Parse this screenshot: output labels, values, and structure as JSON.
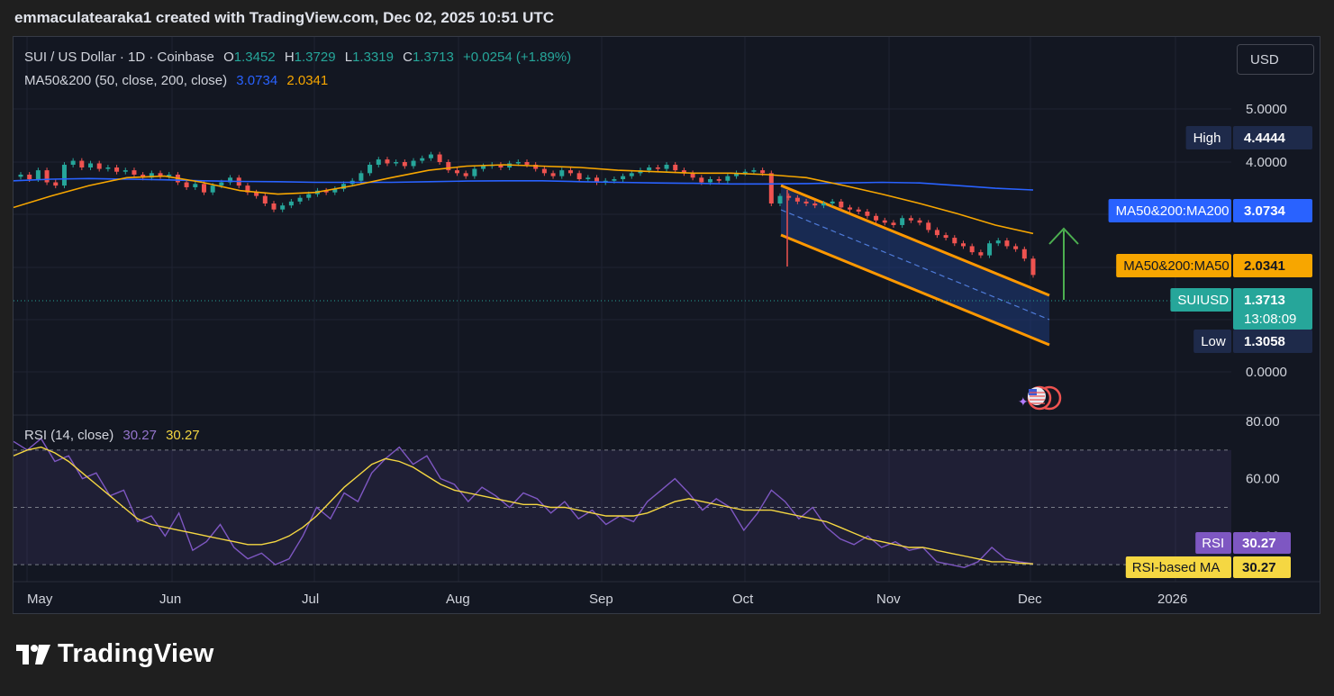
{
  "caption": "emmaculatearaka1 created with TradingView.com, Dec 02, 2025 10:51 UTC",
  "legend": {
    "symbol": "SUI / US Dollar · 1D · Coinbase",
    "o_label": "O",
    "o": "1.3452",
    "h_label": "H",
    "h": "1.3729",
    "l_label": "L",
    "l": "1.3319",
    "c_label": "C",
    "c": "1.3713",
    "change": "+0.0254 (+1.89%)",
    "ma_label": "MA50&200 (50, close, 200, close)",
    "ma200_value": "3.0734",
    "ma50_value": "2.0341",
    "rsi_label": "RSI (14, close)",
    "rsi_value": "30.27",
    "rsi_ma_value": "30.27"
  },
  "currency_button": "USD",
  "brand": "TradingView",
  "colors": {
    "up": "#26a69a",
    "down": "#ef5350",
    "ma200": "#2962ff",
    "ma50": "#f7a600",
    "rsi": "#7e57c2",
    "rsi_ma": "#f5d742",
    "channel": "#ff9800",
    "arrow": "#4caf50"
  },
  "chart_data": [
    {
      "type": "candlestick",
      "title": "",
      "x_tick_labels": [
        "May",
        "Jun",
        "Jul",
        "Aug",
        "Sep",
        "Oct",
        "Nov",
        "Dec",
        "2026"
      ],
      "y_tick_labels": [
        "5.0000",
        "4.0000",
        "0.0000"
      ],
      "price_labels": [
        {
          "name": "High",
          "value": "4.4444",
          "color": "#1e2a4a"
        },
        {
          "name": "MA50&200:MA200",
          "value": "3.0734",
          "color": "#2962ff"
        },
        {
          "name": "MA50&200:MA50",
          "value": "2.0341",
          "color": "#f7a600"
        },
        {
          "name": "SUIUSD",
          "value": "1.3713",
          "sub": "13:08:09",
          "color": "#26a69a"
        },
        {
          "name": "Low",
          "value": "1.3058",
          "color": "#1e2a4a"
        }
      ],
      "close_path": [
        3.55,
        3.4,
        3.7,
        3.3,
        3.2,
        3.9,
        4.05,
        3.8,
        3.95,
        3.75,
        3.8,
        3.65,
        3.7,
        3.55,
        3.45,
        3.6,
        3.5,
        3.55,
        3.3,
        3.15,
        3.25,
        3.0,
        3.2,
        3.3,
        3.45,
        3.2,
        3.0,
        2.9,
        2.7,
        2.55,
        2.65,
        2.75,
        2.85,
        2.95,
        3.05,
        3.0,
        3.1,
        3.25,
        3.35,
        3.6,
        3.9,
        4.1,
        3.95,
        4.0,
        3.85,
        4.05,
        4.15,
        4.3,
        4.0,
        3.7,
        3.6,
        3.5,
        3.75,
        3.85,
        3.9,
        3.8,
        3.95,
        4.0,
        3.9,
        3.75,
        3.6,
        3.5,
        3.7,
        3.6,
        3.4,
        3.45,
        3.3,
        3.35,
        3.4,
        3.5,
        3.6,
        3.7,
        3.8,
        3.75,
        3.9,
        3.7,
        3.6,
        3.45,
        3.3,
        3.4,
        3.35,
        3.5,
        3.6,
        3.65,
        3.7,
        3.6,
        2.7,
        2.9,
        2.85,
        2.75,
        2.7,
        2.65,
        2.7,
        2.75,
        2.6,
        2.55,
        2.5,
        2.4,
        2.3,
        2.25,
        2.2,
        2.35,
        2.3,
        2.25,
        2.1,
        2.0,
        1.95,
        1.85,
        1.8,
        1.7,
        1.65,
        1.85,
        1.9,
        1.8,
        1.75,
        1.6,
        1.37
      ],
      "ma200": [
        3.35,
        3.4,
        3.42,
        3.4,
        3.38,
        3.35,
        3.33,
        3.32,
        3.3,
        3.3,
        3.3,
        3.32,
        3.34,
        3.35,
        3.35,
        3.32,
        3.3,
        3.28,
        3.27,
        3.25,
        3.25,
        3.26,
        3.28,
        3.3,
        3.28,
        3.2,
        3.12,
        3.07
      ],
      "ma50": [
        2.6,
        2.9,
        3.2,
        3.45,
        3.5,
        3.3,
        3.05,
        2.95,
        3.0,
        3.2,
        3.45,
        3.7,
        3.85,
        3.9,
        3.85,
        3.8,
        3.7,
        3.65,
        3.6,
        3.6,
        3.55,
        3.45,
        3.2,
        2.95,
        2.7,
        2.45,
        2.2,
        2.03
      ],
      "annotations": [
        "descending channel",
        "up arrow"
      ]
    },
    {
      "type": "line",
      "title": "",
      "y_tick_labels": [
        "80.00",
        "60.00",
        "40.00"
      ],
      "levels": [
        70,
        50,
        30
      ],
      "series": [
        {
          "name": "RSI",
          "values": [
            73,
            70,
            74,
            66,
            68,
            60,
            62,
            54,
            56,
            45,
            47,
            40,
            48,
            35,
            38,
            44,
            36,
            32,
            34,
            30,
            32,
            40,
            50,
            46,
            55,
            52,
            62,
            67,
            71,
            65,
            68,
            60,
            58,
            52,
            57,
            54,
            50,
            55,
            53,
            48,
            52,
            46,
            49,
            44,
            47,
            45,
            52,
            56,
            60,
            55,
            49,
            53,
            50,
            42,
            48,
            56,
            52,
            46,
            50,
            43,
            39,
            37,
            40,
            36,
            38,
            35,
            36,
            31,
            30,
            29,
            31,
            36,
            32,
            31,
            30.27
          ]
        },
        {
          "name": "RSI-based MA",
          "values": [
            68,
            70,
            71,
            69,
            66,
            62,
            58,
            54,
            50,
            46,
            44,
            43,
            42,
            41,
            40,
            39,
            38,
            37,
            37,
            38,
            40,
            43,
            47,
            52,
            57,
            61,
            65,
            67,
            66,
            64,
            61,
            58,
            56,
            55,
            54,
            53,
            52,
            51,
            51,
            50,
            50,
            49,
            48,
            47,
            47,
            47,
            48,
            50,
            52,
            53,
            52,
            51,
            50,
            49,
            49,
            49,
            48,
            47,
            46,
            45,
            43,
            41,
            39,
            38,
            37,
            36,
            36,
            35,
            34,
            33,
            32,
            31,
            31,
            30.5,
            30.27
          ]
        }
      ],
      "price_labels": [
        {
          "name": "RSI",
          "value": "30.27",
          "color": "#7e57c2"
        },
        {
          "name": "RSI-based MA",
          "value": "30.27",
          "color": "#f5d742"
        }
      ]
    }
  ]
}
